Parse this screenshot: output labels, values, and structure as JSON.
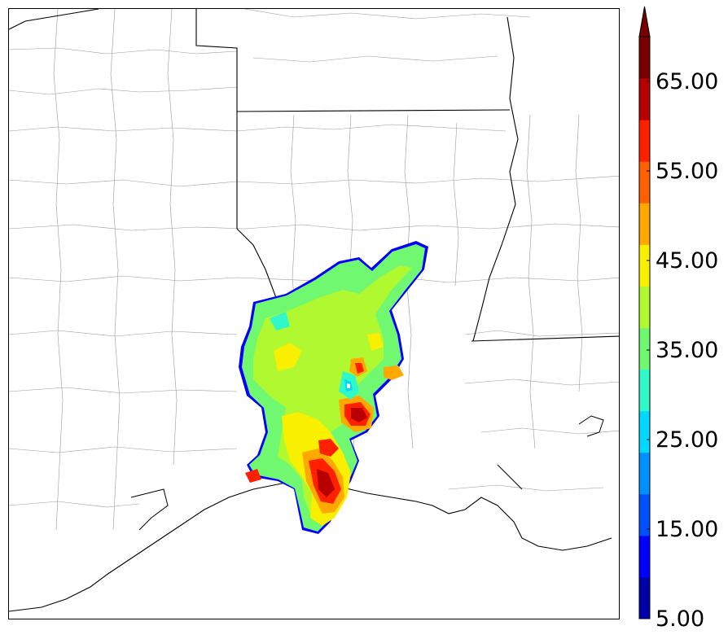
{
  "map": {
    "colors": {
      "state_border": "#000000",
      "county_border": "#9a9a9a",
      "coastline": "#000000"
    },
    "field_levels_colors": [
      "#0000aa",
      "#0000ff",
      "#0055ff",
      "#0099ff",
      "#00ddff",
      "#33ffcc",
      "#66ff66",
      "#aaff33",
      "#ffee00",
      "#ffaa00",
      "#ff6600",
      "#ff2200",
      "#cc0000",
      "#800000"
    ]
  },
  "colorbar": {
    "min": 5,
    "max": 70,
    "extend": "max",
    "colors": [
      "#0000a8",
      "#0000ff",
      "#0050ff",
      "#0090ff",
      "#00d8ff",
      "#30f8c8",
      "#70f870",
      "#b0f830",
      "#f8f000",
      "#ffa800",
      "#ff6000",
      "#ff2000",
      "#b80000",
      "#780000"
    ],
    "tick_labels": [
      "5.00",
      "15.00",
      "25.00",
      "35.00",
      "45.00",
      "55.00",
      "65.00"
    ]
  }
}
